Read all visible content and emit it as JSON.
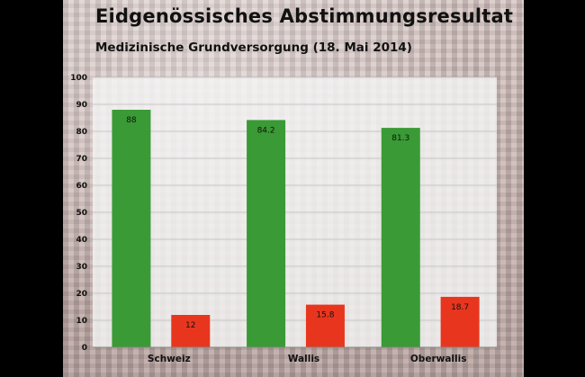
{
  "title": "Eidgenössisches Abstimmungsresultat",
  "subtitle": "Medizinische Grundversorgung (18. Mai 2014)",
  "colors": {
    "yes": "#3a9a35",
    "no": "#e8361e",
    "plot_bg": "#f4f4f4"
  },
  "chart_data": {
    "type": "bar",
    "categories": [
      "Schweiz",
      "Wallis",
      "Oberwallis"
    ],
    "series": [
      {
        "values": [
          88,
          84.2,
          81.3
        ]
      },
      {
        "values": [
          12,
          15.8,
          18.7
        ]
      }
    ],
    "data_labels": [
      [
        "88",
        "84.2",
        "81.3"
      ],
      [
        "12",
        "15.8",
        "18.7"
      ]
    ],
    "ylim": [
      0,
      100
    ],
    "yticks": [
      0,
      10,
      20,
      30,
      40,
      50,
      60,
      70,
      80,
      90,
      100
    ],
    "grid": true,
    "legend": "none"
  }
}
